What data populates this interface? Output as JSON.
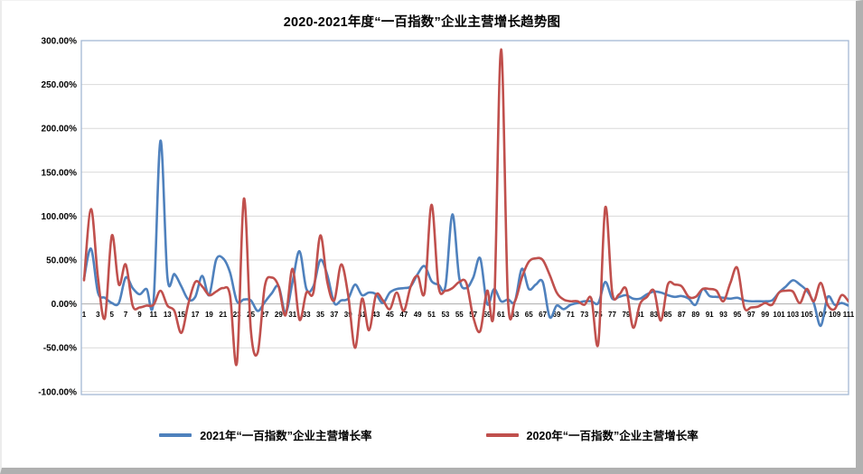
{
  "title": "2020-2021年度“一百指数”企业主营增长趋势图",
  "legend": [
    {
      "label": "2021年“一百指数”企业主营增长率",
      "color": "#4F81BD"
    },
    {
      "label": "2020年“一百指数”企业主营增长率",
      "color": "#C0504D"
    }
  ],
  "colors": {
    "series_2021": "#4F81BD",
    "series_2020": "#C0504D",
    "gridline": "#D9D9D9",
    "zero_axis": "#ABABAB",
    "plot_border": "#A3B8D4",
    "text": "#000000"
  },
  "chart_data": {
    "type": "line",
    "title": "2020-2021年度“一百指数”企业主营增长趋势图",
    "xlabel": "",
    "ylabel": "",
    "x_range": [
      1,
      111
    ],
    "x_step": 1,
    "ylim": [
      -100,
      300
    ],
    "grid": true,
    "line_style": "smooth",
    "legend_position": "bottom",
    "value_unit": "percent",
    "y_ticks": [
      {
        "label": "300.00%",
        "value": 300
      },
      {
        "label": "250.00%",
        "value": 250
      },
      {
        "label": "200.00%",
        "value": 200
      },
      {
        "label": "150.00%",
        "value": 150
      },
      {
        "label": "100.00%",
        "value": 100
      },
      {
        "label": "50.00%",
        "value": 50
      },
      {
        "label": "0.00%",
        "value": 0
      },
      {
        "label": "-50.00%",
        "value": -50
      },
      {
        "label": "-100.00%",
        "value": -100
      }
    ],
    "x_tick_labels": [
      "1",
      "3",
      "5",
      "7",
      "9",
      "11",
      "13",
      "15",
      "17",
      "19",
      "21",
      "23",
      "25",
      "27",
      "29",
      "31",
      "33",
      "35",
      "37",
      "39",
      "41",
      "43",
      "45",
      "47",
      "49",
      "51",
      "53",
      "55",
      "57",
      "59",
      "61",
      "63",
      "65",
      "67",
      "69",
      "71",
      "73",
      "75",
      "77",
      "79",
      "81",
      "83",
      "85",
      "87",
      "89",
      "91",
      "93",
      "95",
      "97",
      "99",
      "101",
      "103",
      "105",
      "107",
      "109",
      "111"
    ],
    "series": [
      {
        "name": "2021年“一百指数”企业主营增长率",
        "color": "#4F81BD",
        "values": [
          29,
          63,
          13,
          7,
          1,
          1,
          30,
          18,
          11,
          17,
          3,
          186,
          30,
          34,
          20,
          5,
          8,
          32,
          10,
          50,
          52,
          36,
          3,
          5,
          4,
          -8,
          2,
          12,
          20,
          -10,
          25,
          60,
          17,
          20,
          50,
          33,
          1,
          4,
          6,
          22,
          10,
          13,
          11,
          1,
          13,
          17,
          18,
          20,
          34,
          43,
          26,
          22,
          20,
          102,
          29,
          18,
          30,
          52,
          0,
          17,
          3,
          5,
          3,
          40,
          17,
          22,
          25,
          -15,
          -2,
          -6,
          -1,
          1,
          3,
          3,
          1,
          25,
          6,
          8,
          10,
          6,
          6,
          11,
          14,
          13,
          10,
          8,
          9,
          6,
          -1,
          17,
          9,
          8,
          7,
          6,
          7,
          4,
          3,
          3,
          3,
          4,
          13,
          20,
          27,
          22,
          15,
          1,
          -25,
          8,
          -1,
          1,
          -2
        ]
      },
      {
        "name": "2020年“一百指数”企业主营增长率",
        "color": "#C0504D",
        "values": [
          27,
          108,
          30,
          -16,
          78,
          22,
          45,
          -2,
          -4,
          -2,
          -1,
          15,
          -2,
          -8,
          -33,
          0,
          25,
          20,
          10,
          14,
          18,
          10,
          -67,
          120,
          -30,
          -55,
          20,
          30,
          20,
          -13,
          40,
          -18,
          13,
          13,
          78,
          25,
          4,
          45,
          10,
          -50,
          6,
          -30,
          10,
          4,
          -6,
          13,
          -8,
          20,
          32,
          13,
          113,
          20,
          15,
          18,
          25,
          24,
          -15,
          -31,
          15,
          -4,
          290,
          5,
          3,
          30,
          48,
          52,
          50,
          33,
          13,
          5,
          3,
          3,
          -1,
          6,
          -45,
          110,
          13,
          11,
          17,
          -27,
          0,
          8,
          15,
          -19,
          22,
          22,
          20,
          8,
          8,
          17,
          17,
          15,
          3,
          24,
          41,
          -4,
          -4,
          -3,
          1,
          -1,
          13,
          15,
          14,
          1,
          17,
          3,
          24,
          -1,
          -6,
          10,
          3
        ]
      }
    ]
  }
}
